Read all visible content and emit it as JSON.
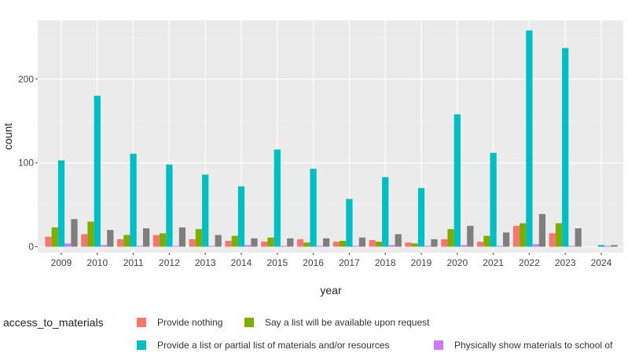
{
  "chart_data": {
    "type": "bar",
    "xlabel": "year",
    "ylabel": "count",
    "ylim": [
      -7,
      270
    ],
    "y_ticks": [
      0,
      100,
      200
    ],
    "grid": true,
    "legend": {
      "title": "access_to_materials",
      "placement": "bottom"
    },
    "categories": [
      "2009",
      "2010",
      "2011",
      "2012",
      "2013",
      "2014",
      "2015",
      "2016",
      "2017",
      "2018",
      "2019",
      "2020",
      "2021",
      "2022",
      "2023",
      "2024"
    ],
    "series": [
      {
        "name": "Provide nothing",
        "color": "#F8766D",
        "values": [
          12,
          15,
          9,
          14,
          9,
          7,
          6,
          9,
          6,
          8,
          5,
          9,
          6,
          25,
          16,
          0
        ]
      },
      {
        "name": "Say a list will be available upon request",
        "color": "#7CAE00",
        "values": [
          23,
          30,
          14,
          16,
          21,
          13,
          11,
          5,
          7,
          6,
          4,
          21,
          13,
          28,
          28,
          0
        ]
      },
      {
        "name": "Provide a list or partial list of materials and/or resources",
        "color": "#00BFC4",
        "values": [
          103,
          180,
          111,
          98,
          86,
          72,
          116,
          93,
          57,
          83,
          70,
          158,
          112,
          258,
          237,
          2
        ]
      },
      {
        "name": "Physically show materials to school of",
        "color": "#C77CFF",
        "values": [
          4,
          2,
          1,
          1,
          1,
          2,
          1,
          1,
          1,
          2,
          1,
          2,
          1,
          3,
          1,
          1
        ]
      },
      {
        "name": "",
        "color": "#7F7F7F",
        "values": [
          33,
          20,
          22,
          23,
          14,
          10,
          10,
          10,
          11,
          15,
          9,
          25,
          17,
          39,
          22,
          2
        ]
      }
    ]
  }
}
